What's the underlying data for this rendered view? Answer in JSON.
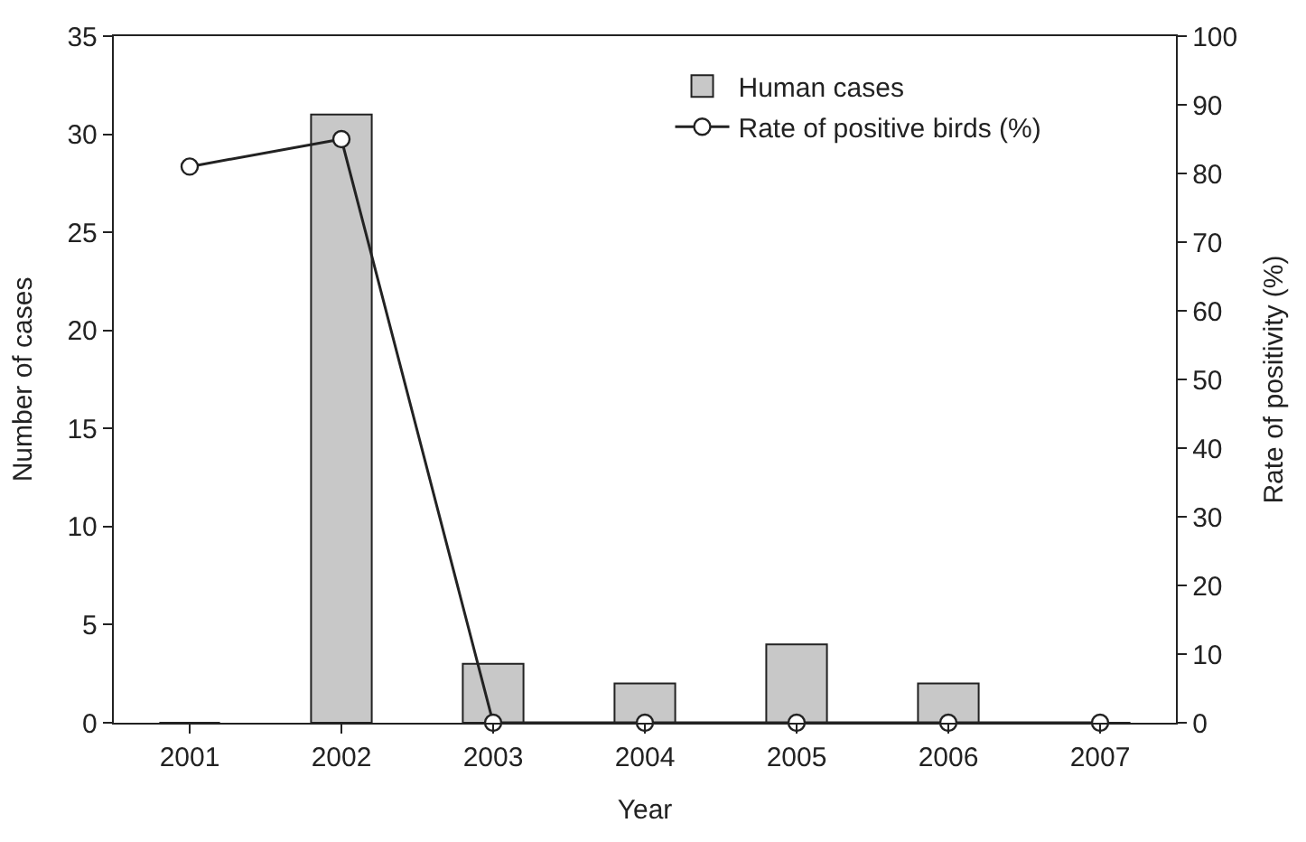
{
  "chart_data": {
    "type": "bar",
    "xlabel": "Year",
    "ylabel": "Number of cases",
    "y2label": "Rate of positivity (%)",
    "categories": [
      "2001",
      "2002",
      "2003",
      "2004",
      "2005",
      "2006",
      "2007"
    ],
    "series": [
      {
        "name": "Human cases",
        "color": "#c8c8c8",
        "values": [
          0,
          31,
          3,
          2,
          4,
          2,
          0
        ]
      },
      {
        "name": "Rate of positive birds (%)",
        "type": "line",
        "axis": "y2",
        "color": "#222222",
        "marker": "circle",
        "values": [
          81,
          85,
          0,
          0,
          0,
          0,
          0
        ]
      }
    ],
    "ylim": [
      0,
      35
    ],
    "yticks": [
      0,
      5,
      10,
      15,
      20,
      25,
      30,
      35
    ],
    "y2lim": [
      0,
      100
    ],
    "y2ticks": [
      0,
      10,
      20,
      30,
      40,
      50,
      60,
      70,
      80,
      90,
      100
    ],
    "legend": "top right"
  }
}
